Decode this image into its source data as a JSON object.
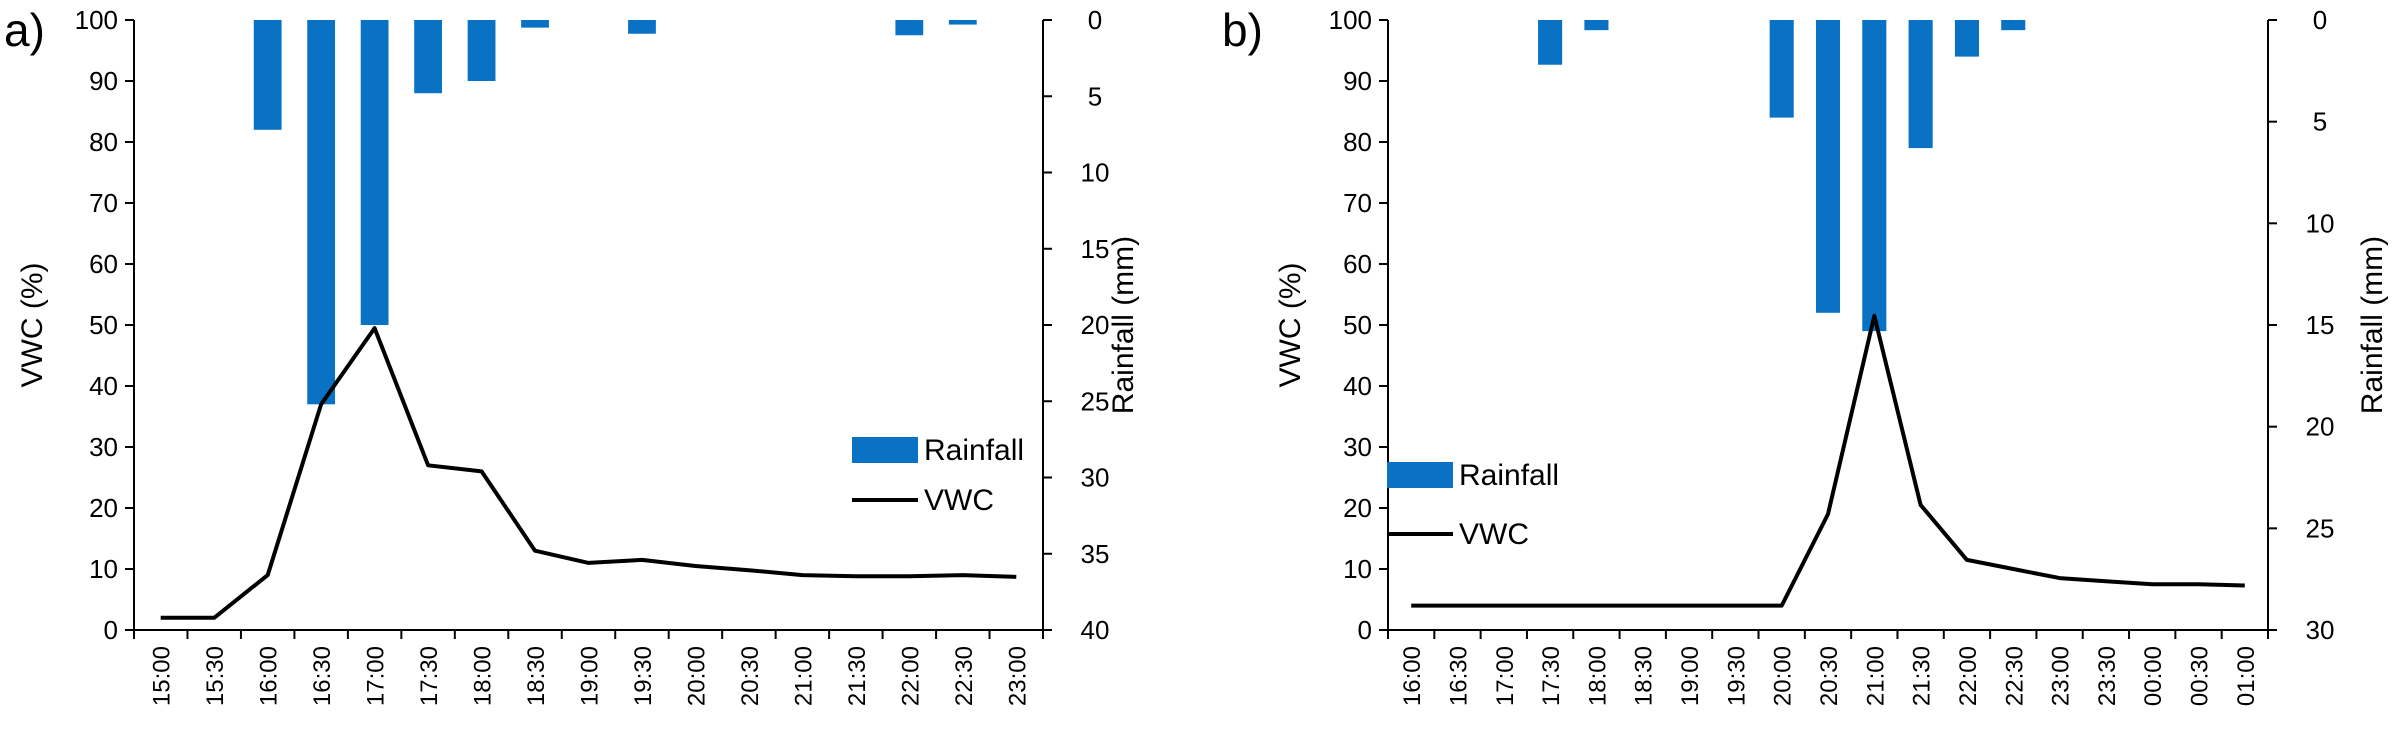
{
  "colors": {
    "rainfall": "#0a72c4",
    "vwc": "#000000",
    "axis": "#000000"
  },
  "chart_data": [
    {
      "type": "bar+line",
      "panel_label": "a)",
      "categories": [
        "15:00",
        "15:30",
        "16:00",
        "16:30",
        "17:00",
        "17:30",
        "18:00",
        "18:30",
        "19:00",
        "19:30",
        "20:00",
        "20:30",
        "21:00",
        "21:30",
        "22:00",
        "22:30",
        "23:00"
      ],
      "ylabel": "VWC (%)",
      "ylim": [
        0,
        100
      ],
      "yticks": [
        "0",
        "10",
        "20",
        "30",
        "40",
        "50",
        "60",
        "70",
        "80",
        "90",
        "100"
      ],
      "y2label": "Rainfall (mm)",
      "y2lim": [
        0,
        40
      ],
      "y2ticks": [
        "0",
        "5",
        "10",
        "15",
        "20",
        "25",
        "30",
        "35",
        "40"
      ],
      "y2_inverted": true,
      "legend": {
        "position": "right-middle",
        "rainfall": "Rainfall",
        "vwc": "VWC"
      },
      "series": [
        {
          "name": "Rainfall",
          "axis": "y2",
          "kind": "bar",
          "values": [
            0,
            0,
            7.2,
            25.2,
            20,
            4.8,
            4,
            0.5,
            0,
            0.9,
            0,
            0,
            0,
            0,
            1,
            0.3,
            0
          ]
        },
        {
          "name": "VWC",
          "axis": "y",
          "kind": "line",
          "values": [
            2,
            2,
            9,
            37,
            49.5,
            27,
            26,
            13,
            11,
            11.5,
            10.5,
            9.8,
            9,
            8.8,
            8.8,
            9,
            8.7
          ]
        }
      ]
    },
    {
      "type": "bar+line",
      "panel_label": "b)",
      "categories": [
        "16:00",
        "16:30",
        "17:00",
        "17:30",
        "18:00",
        "18:30",
        "19:00",
        "19:30",
        "20:00",
        "20:30",
        "21:00",
        "21:30",
        "22:00",
        "22:30",
        "23:00",
        "23:30",
        "00:00",
        "00:30",
        "01:00"
      ],
      "ylabel": "VWC (%)",
      "ylim": [
        0,
        100
      ],
      "yticks": [
        "0",
        "10",
        "20",
        "30",
        "40",
        "50",
        "60",
        "70",
        "80",
        "90",
        "100"
      ],
      "y2label": "Rainfall (mm)",
      "y2lim": [
        0,
        30
      ],
      "y2ticks": [
        "0",
        "5",
        "10",
        "15",
        "20",
        "25",
        "30"
      ],
      "y2_inverted": true,
      "legend": {
        "position": "left-lower",
        "rainfall": "Rainfall",
        "vwc": "VWC"
      },
      "series": [
        {
          "name": "Rainfall",
          "axis": "y2",
          "kind": "bar",
          "values": [
            0,
            0,
            0,
            2.2,
            0.5,
            0,
            0,
            0,
            4.8,
            14.4,
            15.3,
            6.3,
            1.8,
            0.5,
            0,
            0,
            0,
            0,
            0
          ]
        },
        {
          "name": "VWC",
          "axis": "y",
          "kind": "line",
          "values": [
            4,
            4,
            4,
            4,
            4,
            4,
            4,
            4,
            4,
            19,
            51.5,
            20.5,
            11.5,
            10,
            8.5,
            8,
            7.5,
            7.5,
            7.3
          ]
        }
      ]
    }
  ]
}
